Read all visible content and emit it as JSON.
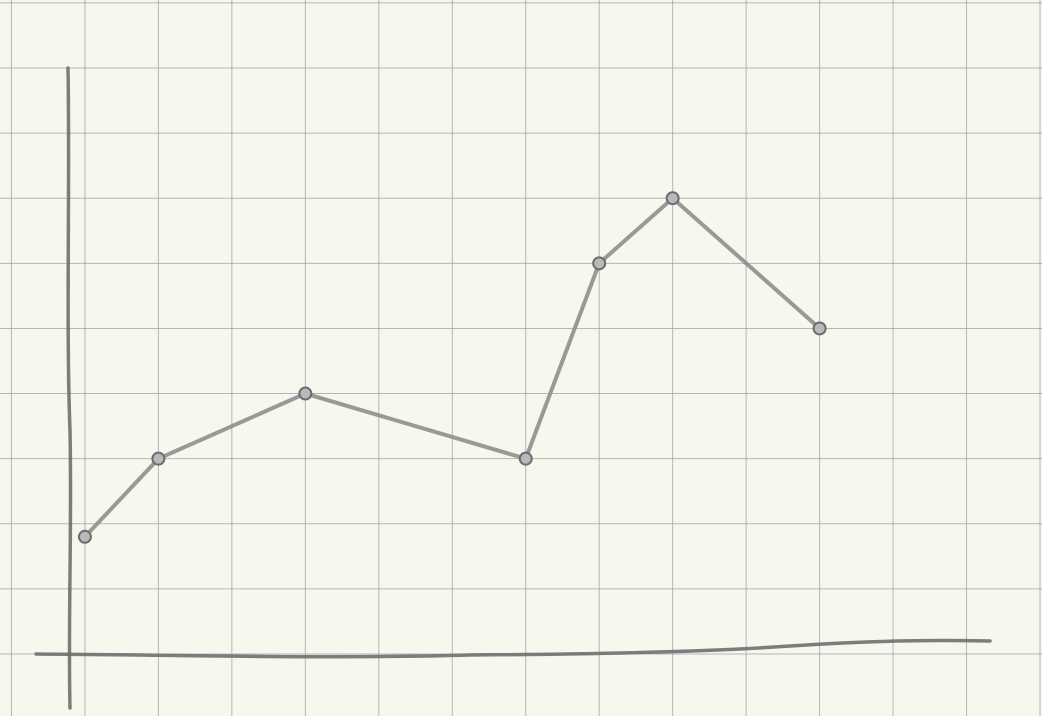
{
  "chart_data": {
    "type": "line",
    "title": "",
    "xlabel": "",
    "ylabel": "",
    "x": [
      1,
      2,
      4,
      7,
      8,
      9,
      11
    ],
    "series": [
      {
        "values": [
          1.8,
          3,
          4,
          3,
          6,
          7,
          5
        ]
      }
    ],
    "xlim": [
      -1,
      14
    ],
    "ylim": [
      0,
      9
    ],
    "grid": true,
    "legend": "none",
    "colors": {
      "paper": "#f8f7ee",
      "grid": "#8c96a6",
      "axis": "#6f6f6f",
      "series": "#8e8e8e",
      "marker_fill": "#b9b9b9",
      "marker_stroke": "#6d6d6d"
    }
  }
}
